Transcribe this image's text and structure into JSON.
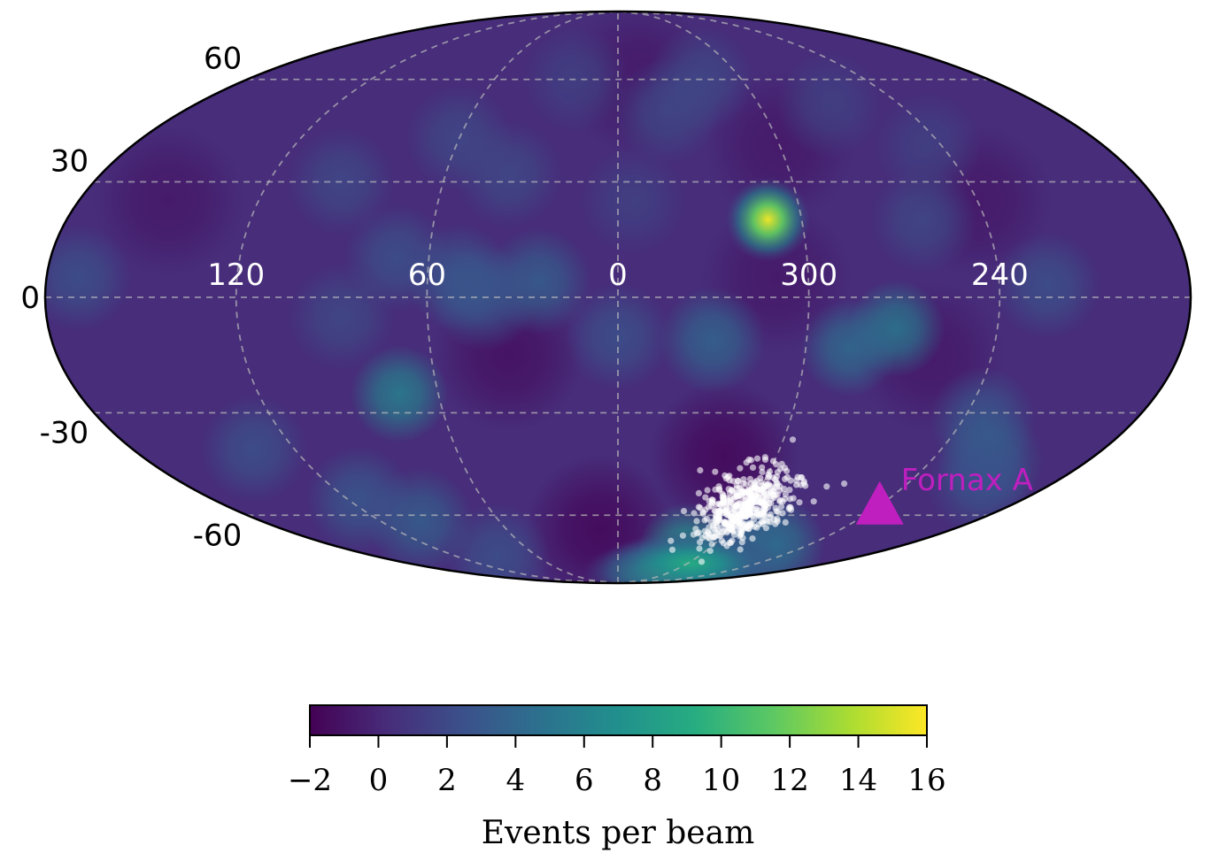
{
  "chart_data": {
    "type": "heatmap",
    "projection": "mollweide",
    "coordinate_system": "galactic",
    "lon_direction": "increasing-to-left",
    "grid": true,
    "lat_ticks": [
      {
        "value": 60,
        "label": "60"
      },
      {
        "value": 30,
        "label": "30"
      },
      {
        "value": 0,
        "label": "0"
      },
      {
        "value": -30,
        "label": "-30"
      },
      {
        "value": -60,
        "label": "-60"
      }
    ],
    "lon_ticks": [
      {
        "value": 120,
        "label": "120"
      },
      {
        "value": 60,
        "label": "60"
      },
      {
        "value": 0,
        "label": "0"
      },
      {
        "value": 300,
        "label": "300"
      },
      {
        "value": 240,
        "label": "240"
      }
    ],
    "colorbar": {
      "title": "Events per beam",
      "range": [
        -2,
        16
      ],
      "colormap": "viridis",
      "orientation": "horizontal",
      "ticks": [
        {
          "value": -2,
          "label": "−2"
        },
        {
          "value": 0,
          "label": "0"
        },
        {
          "value": 2,
          "label": "2"
        },
        {
          "value": 4,
          "label": "4"
        },
        {
          "value": 6,
          "label": "6"
        },
        {
          "value": 8,
          "label": "8"
        },
        {
          "value": 10,
          "label": "10"
        },
        {
          "value": 12,
          "label": "12"
        },
        {
          "value": 14,
          "label": "14"
        },
        {
          "value": 16,
          "label": "16"
        }
      ]
    },
    "hotspots": [
      {
        "lon": 311,
        "lat": 20,
        "value": 15.5
      },
      {
        "lon": 301,
        "lat": -82,
        "value": 10.5
      },
      {
        "lon": 298,
        "lat": -78,
        "value": 9
      },
      {
        "lon": 313,
        "lat": -73,
        "value": 7.5
      },
      {
        "lon": 262,
        "lat": -70,
        "value": 5
      },
      {
        "lon": 270,
        "lat": -75,
        "value": 4
      },
      {
        "lon": 73,
        "lat": -25,
        "value": 6
      },
      {
        "lon": 272,
        "lat": -8,
        "value": 5.5
      },
      {
        "lon": 286,
        "lat": -13,
        "value": 4.5
      },
      {
        "lon": 330,
        "lat": -11,
        "value": 4
      },
      {
        "lon": 25,
        "lat": 4,
        "value": 3.5
      },
      {
        "lon": 50,
        "lat": 5,
        "value": 3
      },
      {
        "lon": 42,
        "lat": 0,
        "value": 3
      },
      {
        "lon": 360,
        "lat": -10,
        "value": 2.5
      },
      {
        "lon": 70,
        "lat": 10,
        "value": 2.5
      },
      {
        "lon": 87,
        "lat": -5,
        "value": 2
      },
      {
        "lon": 60,
        "lat": 42,
        "value": 2
      },
      {
        "lon": 38,
        "lat": 32,
        "value": 2
      },
      {
        "lon": 225,
        "lat": 3,
        "value": 2.5
      },
      {
        "lon": 260,
        "lat": 20,
        "value": 2
      },
      {
        "lon": 233,
        "lat": -32,
        "value": 3
      },
      {
        "lon": 218,
        "lat": -43,
        "value": 3.5
      },
      {
        "lon": 210,
        "lat": -50,
        "value": 2.5
      },
      {
        "lon": 170,
        "lat": 5,
        "value": 2.5
      },
      {
        "lon": 100,
        "lat": -62,
        "value": 3.5
      },
      {
        "lon": 115,
        "lat": -55,
        "value": 3
      },
      {
        "lon": 135,
        "lat": -40,
        "value": 2.5
      },
      {
        "lon": 90,
        "lat": -75,
        "value": 2.5
      },
      {
        "lon": 340,
        "lat": 50,
        "value": 2
      },
      {
        "lon": 270,
        "lat": 52,
        "value": 1.5
      },
      {
        "lon": 95,
        "lat": 30,
        "value": 2
      },
      {
        "lon": 320,
        "lat": 60,
        "value": 2
      },
      {
        "lon": 355,
        "lat": 25,
        "value": 1.5
      },
      {
        "lon": 20,
        "lat": 60,
        "value": 1.5
      },
      {
        "lon": 245,
        "lat": 40,
        "value": 1.5
      }
    ],
    "coldspots": [
      {
        "lon": 10,
        "lat": -65,
        "value": -2
      },
      {
        "lon": 320,
        "lat": -42,
        "value": -2
      },
      {
        "lon": 35,
        "lat": -15,
        "value": -1.5
      },
      {
        "lon": 300,
        "lat": 40,
        "value": -1
      },
      {
        "lon": 240,
        "lat": 25,
        "value": -1
      },
      {
        "lon": 350,
        "lat": 60,
        "value": -1
      },
      {
        "lon": 150,
        "lat": 25,
        "value": -1
      },
      {
        "lon": 260,
        "lat": -15,
        "value": -1
      },
      {
        "lon": 310,
        "lat": 5,
        "value": -1
      }
    ],
    "event_cluster": {
      "marker": "white-dot",
      "center": {
        "lon": 301,
        "lat": -57
      },
      "spread": {
        "lon": 10,
        "lat": 6
      },
      "count": 500
    },
    "annotations": [
      {
        "label": "Fornax A",
        "lon": 240.2,
        "lat": -56.7,
        "marker": "triangle",
        "color": "#bf1fbf"
      }
    ],
    "colors": {
      "outline": "#000000",
      "grid": "#bbbbbb",
      "events": "#ffffff",
      "annotation": "#bf1fbf"
    }
  }
}
